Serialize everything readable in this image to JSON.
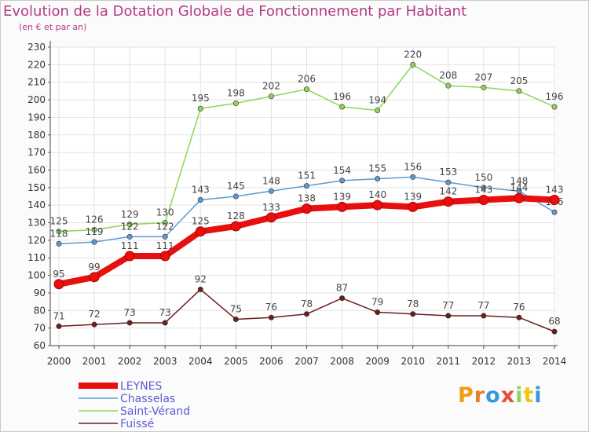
{
  "header": {
    "title": "Evolution de la Dotation Globale de Fonctionnement par Habitant",
    "subtitle": "(en € et par an)"
  },
  "logo": {
    "text": "Proxiti"
  },
  "colors": {
    "LEYNES": "#e8100f",
    "Chasselas": "#5b9bd1",
    "Saint-Vérand": "#8dd65a",
    "Fuissé": "#6b1e1e",
    "legend_text": "#5b5bd6"
  },
  "chart_data": {
    "type": "line",
    "x": [
      2000,
      2001,
      2002,
      2003,
      2004,
      2005,
      2006,
      2007,
      2008,
      2009,
      2010,
      2011,
      2012,
      2013,
      2014
    ],
    "ylim": [
      60,
      230
    ],
    "yticks": [
      60,
      70,
      80,
      90,
      100,
      110,
      120,
      130,
      140,
      150,
      160,
      170,
      180,
      190,
      200,
      210,
      220,
      230
    ],
    "grid": true,
    "legend_position": "bottom-left",
    "series": [
      {
        "name": "Saint-Vérand",
        "values": [
          125,
          126,
          129,
          130,
          195,
          198,
          202,
          206,
          196,
          194,
          220,
          208,
          207,
          205,
          196
        ]
      },
      {
        "name": "Chasselas",
        "values": [
          118,
          119,
          122,
          122,
          143,
          145,
          148,
          151,
          154,
          155,
          156,
          153,
          150,
          148,
          136
        ]
      },
      {
        "name": "Fuissé",
        "values": [
          71,
          72,
          73,
          73,
          92,
          75,
          76,
          78,
          87,
          79,
          78,
          77,
          77,
          76,
          68
        ]
      },
      {
        "name": "LEYNES",
        "values": [
          95,
          99,
          111,
          111,
          125,
          128,
          133,
          138,
          139,
          140,
          139,
          142,
          143,
          144,
          143
        ]
      }
    ],
    "legend": [
      "LEYNES",
      "Chasselas",
      "Saint-Vérand",
      "Fuissé"
    ]
  }
}
